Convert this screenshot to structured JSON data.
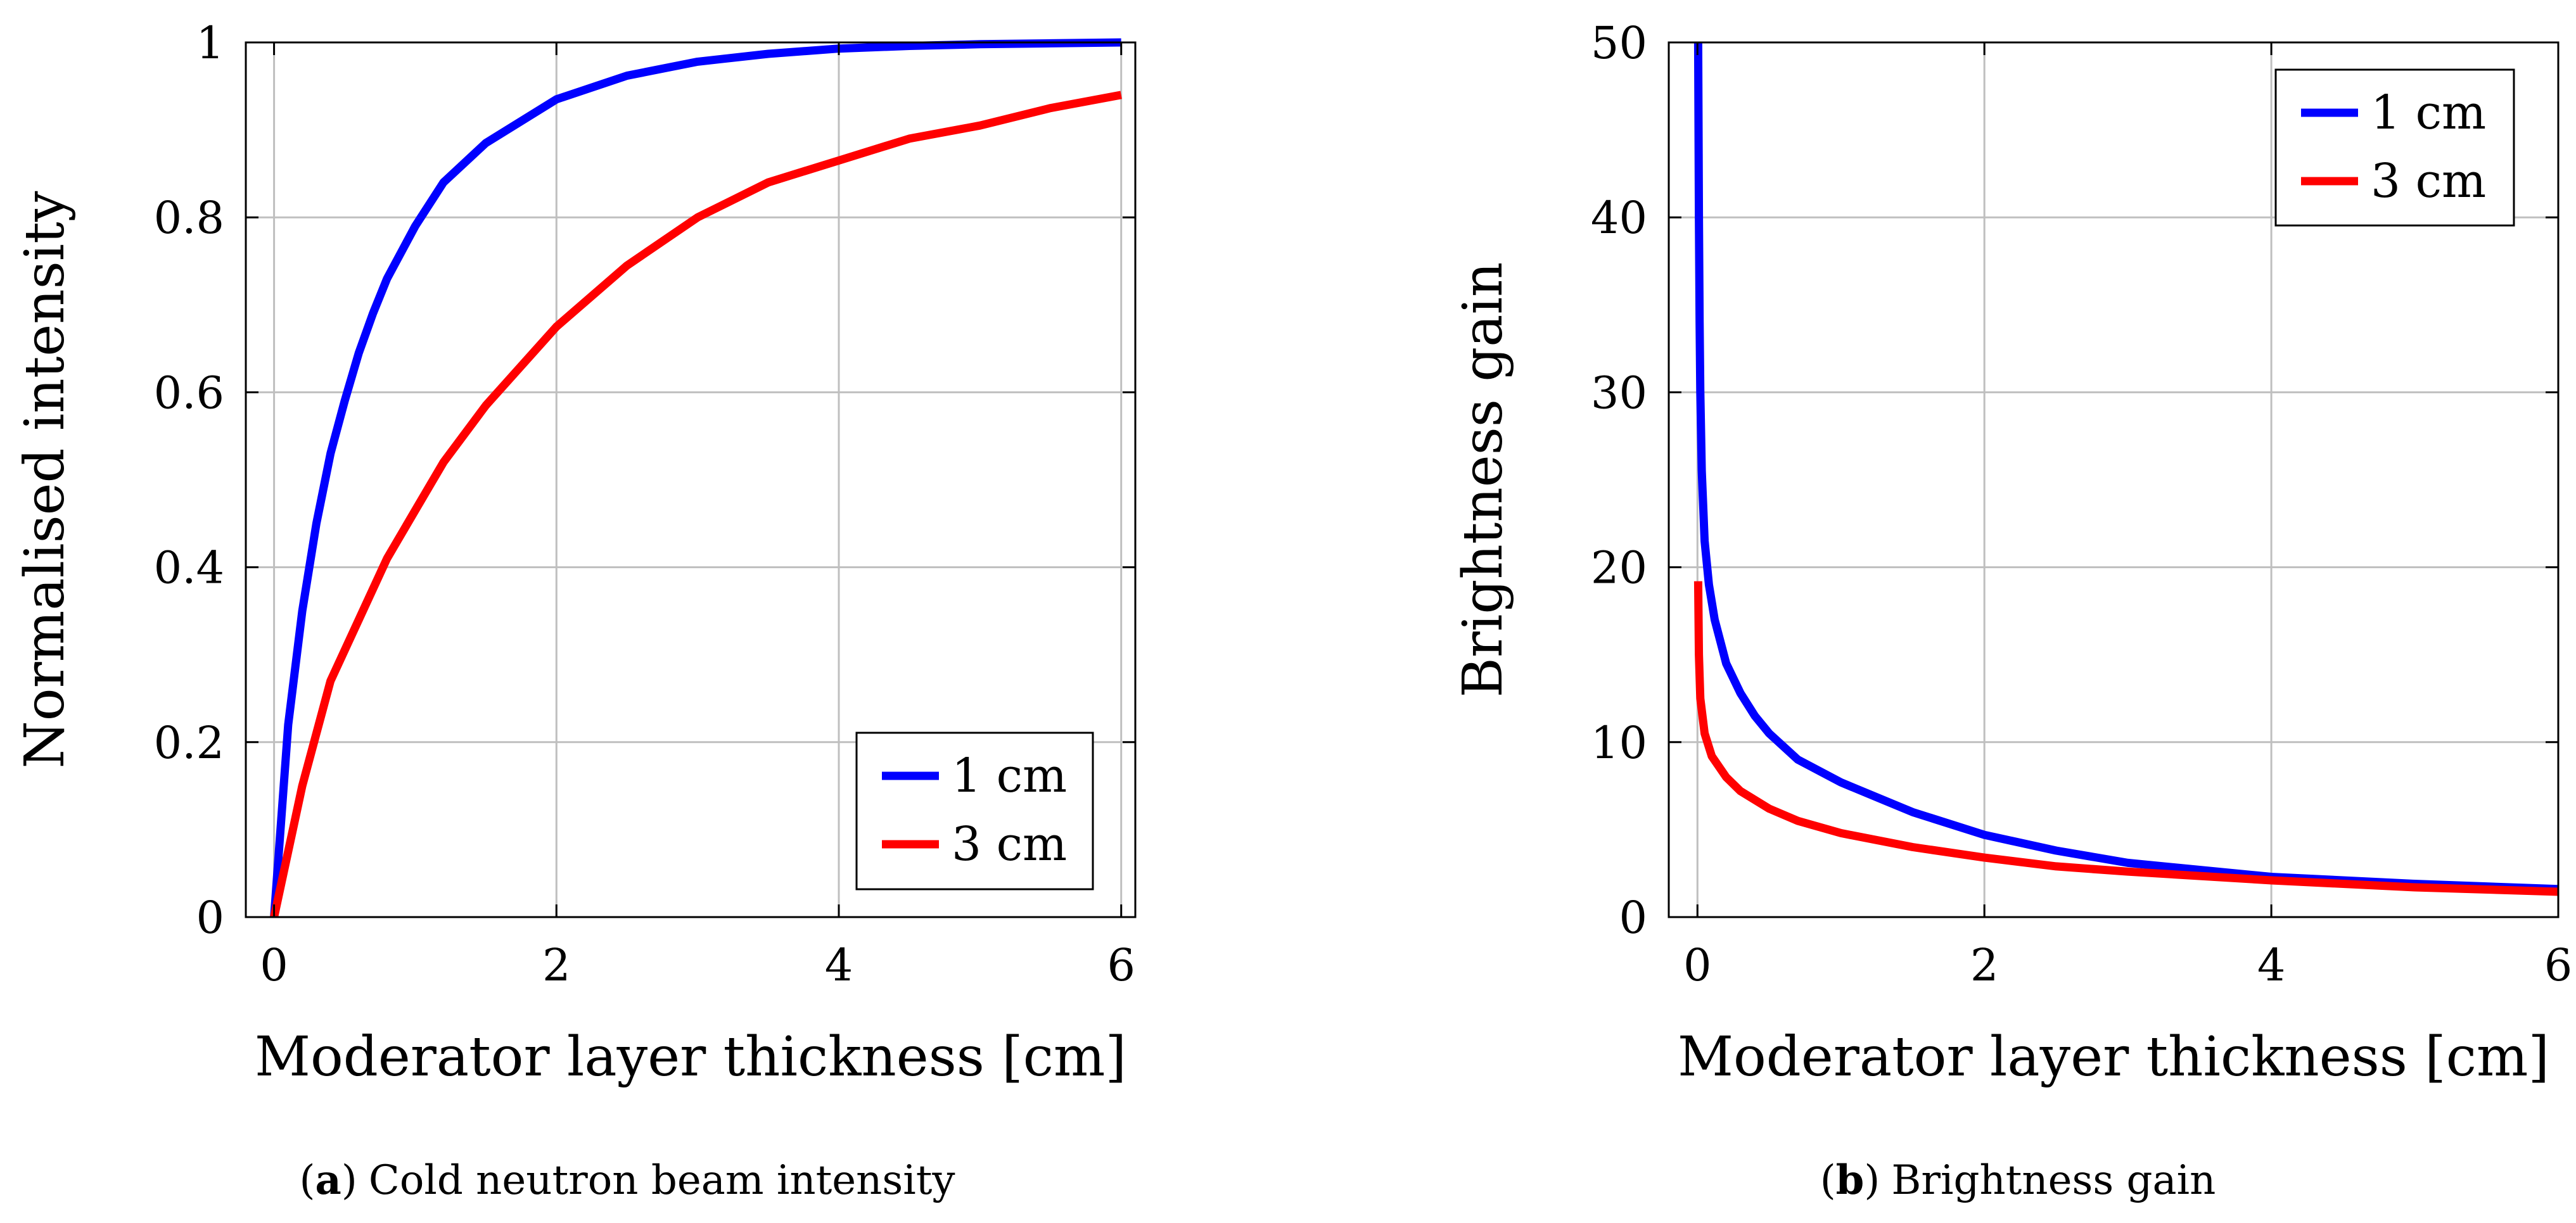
{
  "figure": {
    "caption_a": {
      "open": "(",
      "letter": "a",
      "close": ")",
      "text": "Cold neutron beam intensity"
    },
    "caption_b": {
      "open": "(",
      "letter": "b",
      "close": ")",
      "text": "Brightness gain"
    }
  },
  "colors": {
    "blue": "#0000ff",
    "red": "#ff0000",
    "grid": "#bfbfbf",
    "axis": "#000000"
  },
  "chart_data": [
    {
      "type": "line",
      "title": "",
      "xlabel": "Moderator layer thickness [cm]",
      "ylabel": "Normalised intensity",
      "xlim": [
        -0.2,
        6.1
      ],
      "ylim": [
        0,
        1
      ],
      "xticks": [
        0,
        2,
        4,
        6
      ],
      "xtick_labels": [
        "0",
        "2",
        "4",
        "6"
      ],
      "yticks": [
        0,
        0.2,
        0.4,
        0.6,
        0.8,
        1
      ],
      "ytick_labels": [
        "0",
        "0.2",
        "0.4",
        "0.6",
        "0.8",
        "1"
      ],
      "grid": true,
      "legend_position": "bottom-right",
      "series": [
        {
          "name": "1 cm",
          "color": "#0000ff",
          "x": [
            0,
            0.1,
            0.2,
            0.3,
            0.4,
            0.5,
            0.6,
            0.7,
            0.8,
            1.0,
            1.2,
            1.5,
            2.0,
            2.5,
            3.0,
            3.5,
            4.0,
            4.5,
            5.0,
            5.5,
            6.0
          ],
          "y": [
            0,
            0.22,
            0.35,
            0.45,
            0.53,
            0.59,
            0.645,
            0.69,
            0.73,
            0.79,
            0.84,
            0.885,
            0.935,
            0.962,
            0.978,
            0.987,
            0.993,
            0.996,
            0.998,
            0.999,
            1.0
          ]
        },
        {
          "name": "3 cm",
          "color": "#ff0000",
          "x": [
            0,
            0.2,
            0.4,
            0.6,
            0.8,
            1.0,
            1.2,
            1.5,
            2.0,
            2.5,
            3.0,
            3.5,
            4.0,
            4.5,
            5.0,
            5.5,
            6.0
          ],
          "y": [
            0,
            0.15,
            0.27,
            0.34,
            0.41,
            0.465,
            0.52,
            0.585,
            0.675,
            0.745,
            0.8,
            0.84,
            0.865,
            0.89,
            0.905,
            0.925,
            0.94
          ]
        }
      ]
    },
    {
      "type": "line",
      "title": "",
      "xlabel": "Moderator layer thickness [cm]",
      "ylabel": "Brightness gain",
      "xlim": [
        -0.2,
        6.0
      ],
      "ylim": [
        0,
        50
      ],
      "xticks": [
        0,
        2,
        4,
        6
      ],
      "xtick_labels": [
        "0",
        "2",
        "4",
        "6"
      ],
      "yticks": [
        0,
        10,
        20,
        30,
        40,
        50
      ],
      "ytick_labels": [
        "0",
        "10",
        "20",
        "30",
        "40",
        "50"
      ],
      "grid": true,
      "legend_position": "top-right",
      "series": [
        {
          "name": "1 cm",
          "color": "#0000ff",
          "x": [
            0.005,
            0.01,
            0.015,
            0.02,
            0.03,
            0.05,
            0.08,
            0.12,
            0.2,
            0.3,
            0.4,
            0.5,
            0.7,
            1.0,
            1.5,
            2.0,
            2.5,
            3.0,
            4.0,
            5.0,
            6.0
          ],
          "y": [
            50,
            40,
            34,
            30,
            25.5,
            21.5,
            19,
            17,
            14.5,
            12.8,
            11.5,
            10.5,
            9.0,
            7.7,
            6.0,
            4.7,
            3.8,
            3.1,
            2.3,
            1.9,
            1.6
          ]
        },
        {
          "name": "3 cm",
          "color": "#ff0000",
          "x": [
            0.005,
            0.01,
            0.02,
            0.05,
            0.1,
            0.2,
            0.3,
            0.5,
            0.7,
            1.0,
            1.5,
            2.0,
            2.5,
            3.0,
            4.0,
            5.0,
            6.0
          ],
          "y": [
            19.2,
            15,
            12.5,
            10.5,
            9.2,
            8.0,
            7.2,
            6.2,
            5.5,
            4.8,
            4.0,
            3.4,
            2.9,
            2.6,
            2.1,
            1.7,
            1.45
          ]
        }
      ]
    }
  ]
}
